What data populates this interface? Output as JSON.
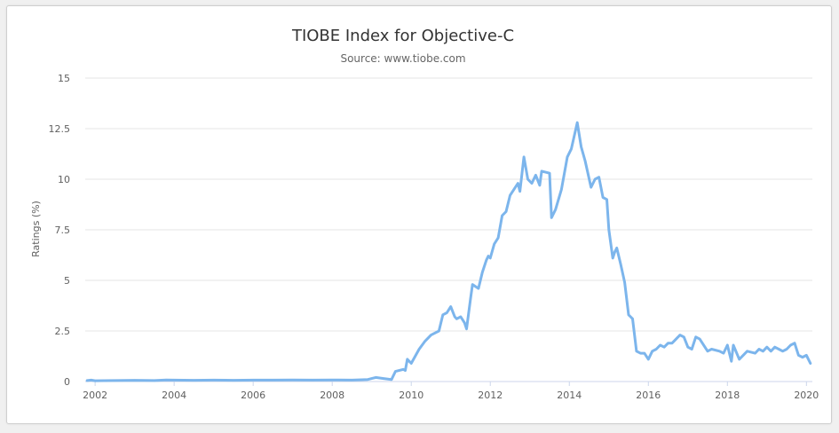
{
  "chart_data": {
    "type": "line",
    "title": "TIOBE Index for Objective-C",
    "subtitle": "Source: www.tiobe.com",
    "ylabel": "Ratings (%)",
    "xlabel": "",
    "ylim": [
      0,
      15
    ],
    "xlim": [
      2001.75,
      2020.15
    ],
    "yticks": [
      "0",
      "2.5",
      "5",
      "7.5",
      "10",
      "12.5",
      "15"
    ],
    "xticks": [
      "2002",
      "2004",
      "2006",
      "2008",
      "2010",
      "2012",
      "2014",
      "2016",
      "2018",
      "2020"
    ],
    "grid": "horizontal",
    "line_color": "#7cb5ec",
    "series": [
      {
        "x": [
          2001.8,
          2001.9,
          2002.0,
          2002.5,
          2003.0,
          2003.5,
          2003.8,
          2004.0,
          2004.5,
          2005.0,
          2005.5,
          2006.0,
          2006.5,
          2007.0,
          2007.5,
          2008.0,
          2008.5,
          2008.9,
          2009.0,
          2009.1,
          2009.3,
          2009.5,
          2009.6,
          2009.8,
          2009.85,
          2009.9,
          2010.0,
          2010.2,
          2010.35,
          2010.5,
          2010.6,
          2010.7,
          2010.8,
          2010.9,
          2011.0,
          2011.1,
          2011.15,
          2011.25,
          2011.35,
          2011.4,
          2011.5,
          2011.55,
          2011.7,
          2011.8,
          2011.9,
          2011.95,
          2012.0,
          2012.1,
          2012.2,
          2012.3,
          2012.4,
          2012.5,
          2012.6,
          2012.7,
          2012.75,
          2012.85,
          2012.95,
          2013.05,
          2013.15,
          2013.25,
          2013.3,
          2013.5,
          2013.55,
          2013.65,
          2013.8,
          2013.95,
          2014.05,
          2014.2,
          2014.3,
          2014.4,
          2014.55,
          2014.65,
          2014.75,
          2014.85,
          2014.95,
          2015.0,
          2015.1,
          2015.15,
          2015.2,
          2015.3,
          2015.4,
          2015.5,
          2015.55,
          2015.6,
          2015.7,
          2015.8,
          2015.9,
          2016.0,
          2016.1,
          2016.2,
          2016.3,
          2016.4,
          2016.5,
          2016.6,
          2016.8,
          2016.9,
          2017.0,
          2017.1,
          2017.2,
          2017.3,
          2017.5,
          2017.6,
          2017.8,
          2017.9,
          2018.0,
          2018.1,
          2018.15,
          2018.3,
          2018.5,
          2018.7,
          2018.8,
          2018.9,
          2019.0,
          2019.1,
          2019.2,
          2019.3,
          2019.4,
          2019.5,
          2019.6,
          2019.7,
          2019.8,
          2019.9,
          2020.0,
          2020.1
        ],
        "y": [
          0.05,
          0.07,
          0.04,
          0.05,
          0.06,
          0.05,
          0.08,
          0.07,
          0.06,
          0.07,
          0.06,
          0.07,
          0.07,
          0.08,
          0.07,
          0.08,
          0.07,
          0.1,
          0.15,
          0.2,
          0.15,
          0.1,
          0.5,
          0.6,
          0.55,
          1.1,
          0.9,
          1.6,
          2.0,
          2.3,
          2.4,
          2.5,
          3.3,
          3.4,
          3.7,
          3.2,
          3.1,
          3.2,
          2.9,
          2.6,
          4.1,
          4.8,
          4.6,
          5.4,
          6.0,
          6.2,
          6.1,
          6.8,
          7.1,
          8.2,
          8.4,
          9.2,
          9.5,
          9.8,
          9.4,
          11.1,
          10.0,
          9.8,
          10.2,
          9.7,
          10.4,
          10.3,
          8.1,
          8.5,
          9.5,
          11.1,
          11.5,
          12.8,
          11.6,
          10.9,
          9.6,
          10.0,
          10.1,
          9.1,
          9.0,
          7.5,
          6.1,
          6.4,
          6.6,
          5.8,
          4.9,
          3.3,
          3.2,
          3.1,
          1.5,
          1.4,
          1.4,
          1.1,
          1.5,
          1.6,
          1.8,
          1.7,
          1.9,
          1.9,
          2.3,
          2.2,
          1.7,
          1.6,
          2.2,
          2.1,
          1.5,
          1.6,
          1.5,
          1.4,
          1.8,
          1.0,
          1.8,
          1.1,
          1.5,
          1.4,
          1.6,
          1.5,
          1.7,
          1.5,
          1.7,
          1.6,
          1.5,
          1.6,
          1.8,
          1.9,
          1.3,
          1.2,
          1.3,
          0.9
        ]
      }
    ]
  }
}
